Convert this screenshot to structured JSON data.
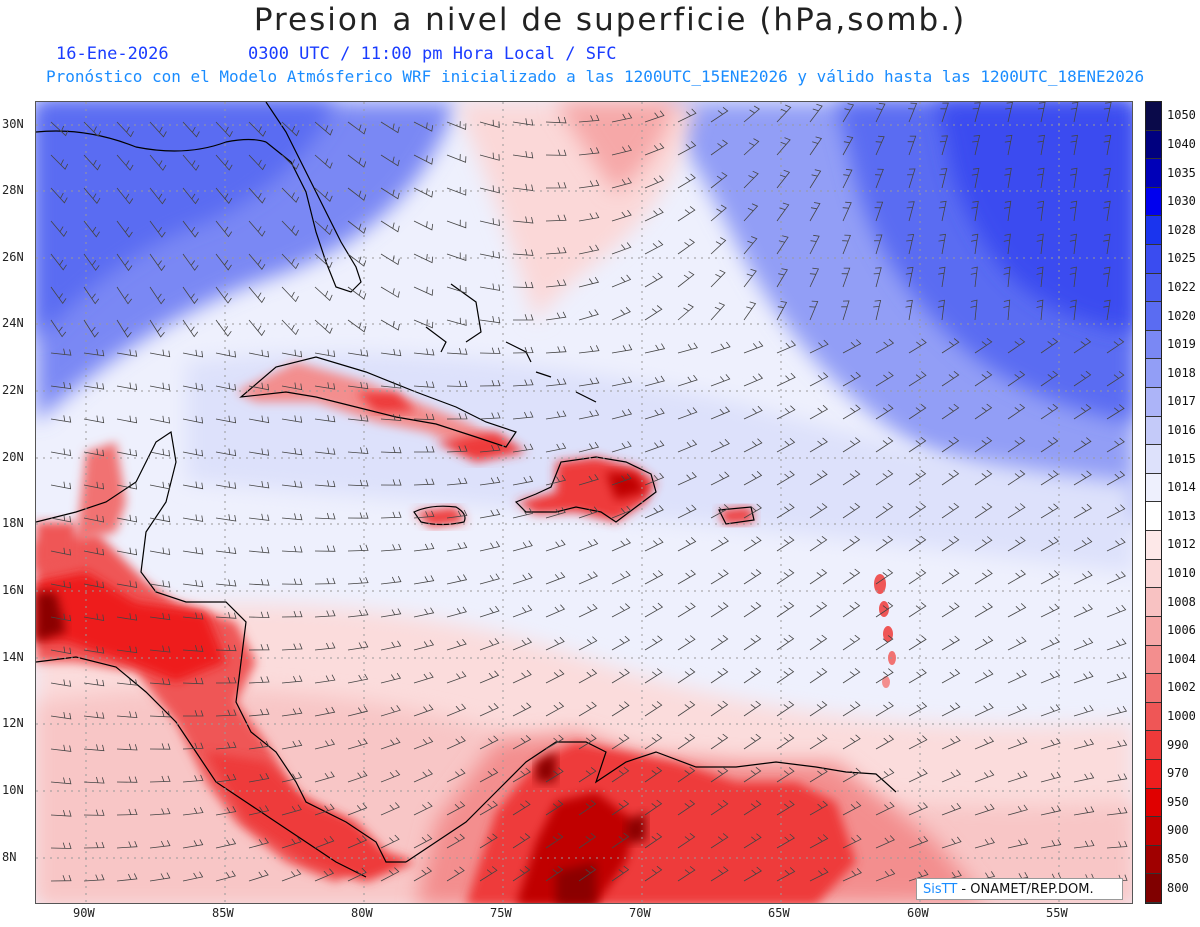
{
  "title": "Presion a nivel de superficie (hPa,somb.)",
  "subtitle_date": "16-Ene-2026",
  "subtitle_time": "0300 UTC / 11:00 pm Hora Local / SFC",
  "subtitle_model": "Pronóstico con el Modelo Atmósferico WRF inicializado a las 1200UTC_15ENE2026 y válido hasta las  1200UTC_18ENE2026",
  "credit": {
    "brand": "SisTT",
    "text": " - ONAMET/REP.DOM."
  },
  "colors": {
    "blue_high": "#5a6cf2",
    "pale_blue": "#dde3fb",
    "white": "#f7f8ff",
    "pink": "#fbdcdc",
    "red": "#f03a3a",
    "dark_red": "#8b0000"
  },
  "lat_labels": [
    "30N",
    "28N",
    "26N",
    "24N",
    "22N",
    "20N",
    "18N",
    "16N",
    "14N",
    "12N",
    "10N",
    "8N"
  ],
  "lon_labels": [
    "90W",
    "85W",
    "80W",
    "75W",
    "70W",
    "65W",
    "60W",
    "55W"
  ],
  "colorbar": [
    {
      "label": "1050",
      "color": "#0a0a4a"
    },
    {
      "label": "1040",
      "color": "#00007f"
    },
    {
      "label": "1035",
      "color": "#0000b8"
    },
    {
      "label": "1030",
      "color": "#0000ee"
    },
    {
      "label": "1028",
      "color": "#1a34ee"
    },
    {
      "label": "1025",
      "color": "#3a4cf0"
    },
    {
      "label": "1022",
      "color": "#4a5cf0"
    },
    {
      "label": "1020",
      "color": "#5a6cf2"
    },
    {
      "label": "1019",
      "color": "#7a88f4"
    },
    {
      "label": "1018",
      "color": "#929ef6"
    },
    {
      "label": "1017",
      "color": "#acb4f8"
    },
    {
      "label": "1016",
      "color": "#c4caf9"
    },
    {
      "label": "1015",
      "color": "#dde1fb"
    },
    {
      "label": "1014",
      "color": "#eef0fd"
    },
    {
      "label": "1013",
      "color": "#ffffff"
    },
    {
      "label": "1012",
      "color": "#fde8e8"
    },
    {
      "label": "1010",
      "color": "#fbd8d8"
    },
    {
      "label": "1008",
      "color": "#f8c2c2"
    },
    {
      "label": "1006",
      "color": "#f6a8a8"
    },
    {
      "label": "1004",
      "color": "#f38e8e"
    },
    {
      "label": "1002",
      "color": "#f17272"
    },
    {
      "label": "1000",
      "color": "#ef5656"
    },
    {
      "label": "990",
      "color": "#ee3a3a"
    },
    {
      "label": "970",
      "color": "#ee1e1e"
    },
    {
      "label": "950",
      "color": "#e00000"
    },
    {
      "label": "900",
      "color": "#c00000"
    },
    {
      "label": "850",
      "color": "#a00000"
    },
    {
      "label": "800",
      "color": "#800000"
    }
  ]
}
